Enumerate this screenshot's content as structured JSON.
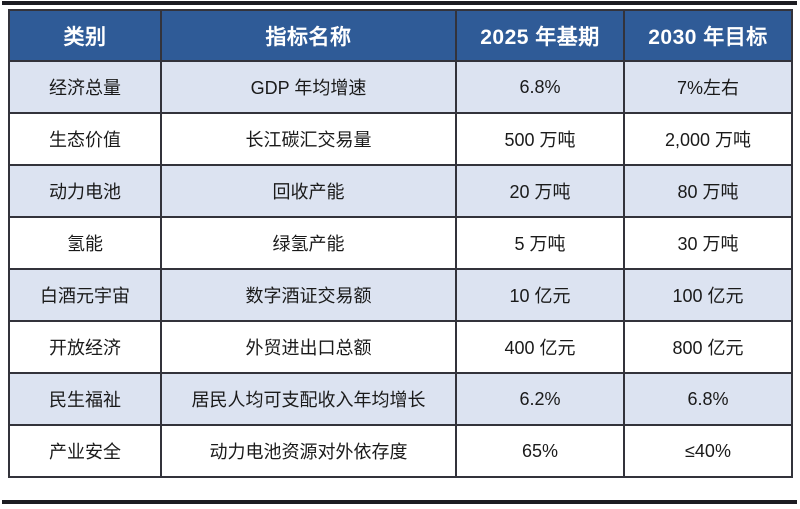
{
  "colors": {
    "header_bg": "#2F5B97",
    "header_text": "#FFFFFF",
    "row_alt_bg": "#DCE3F1",
    "row_plain_bg": "#FFFFFF",
    "grid_border": "#33333B",
    "outer_rule": "#1C1C22",
    "body_text": "#1A1A1A"
  },
  "chart_data": {
    "type": "table",
    "columns": [
      "类别",
      "指标名称",
      "2025 年基期",
      "2030 年目标"
    ],
    "rows": [
      [
        "经济总量",
        "GDP 年均增速",
        "6.8%",
        "7%左右"
      ],
      [
        "生态价值",
        "长江碳汇交易量",
        "500 万吨",
        "2,000 万吨"
      ],
      [
        "动力电池",
        "回收产能",
        "20 万吨",
        "80 万吨"
      ],
      [
        "氢能",
        "绿氢产能",
        "5 万吨",
        "30 万吨"
      ],
      [
        "白酒元宇宙",
        "数字酒证交易额",
        "10 亿元",
        "100 亿元"
      ],
      [
        "开放经济",
        "外贸进出口总额",
        "400 亿元",
        "800 亿元"
      ],
      [
        "民生福祉",
        "居民人均可支配收入年均增长",
        "6.2%",
        "6.8%"
      ],
      [
        "产业安全",
        "动力电池资源对外依存度",
        "65%",
        "≤40%"
      ]
    ]
  }
}
